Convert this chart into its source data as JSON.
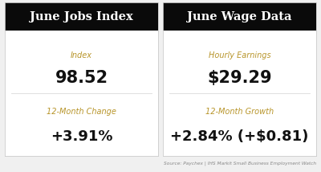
{
  "left_title": "June Jobs Index",
  "right_title": "June Wage Data",
  "left_label1": "Index",
  "left_value1": "98.52",
  "left_label2": "12-Month Change",
  "left_value2": "+3.91%",
  "right_label1": "Hourly Earnings",
  "right_value1": "$29.29",
  "right_label2": "12-Month Growth",
  "right_value2": "+2.84% (+$0.81)",
  "source_text": "Source: Paychex | IHS Markit Small Business Employment Watch",
  "header_bg": "#0a0a0a",
  "header_fg": "#ffffff",
  "card_bg": "#ffffff",
  "label_color": "#b8952a",
  "value_color": "#111111",
  "divider_color": "#e0e0e0",
  "outer_bg": "#f0f0f0",
  "source_color": "#888888",
  "border_color": "#cccccc"
}
